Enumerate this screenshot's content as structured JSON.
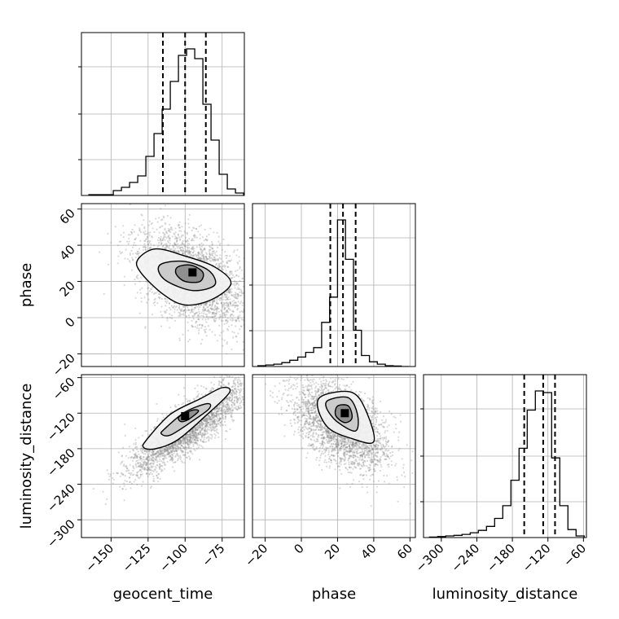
{
  "chart_data": {
    "type": "corner",
    "parameters": [
      "geocent_time",
      "phase",
      "luminosity_distance"
    ],
    "xlabels": [
      "geocent_time",
      "phase",
      "luminosity_distance"
    ],
    "ylabels": [
      "",
      "phase",
      "luminosity_distance"
    ],
    "ranges": {
      "geocent_time": [
        -170,
        -60
      ],
      "phase": [
        -27,
        63
      ],
      "luminosity_distance": [
        -330,
        -55
      ]
    },
    "ticks": {
      "geocent_time": [
        -150,
        -125,
        -100,
        -75
      ],
      "phase": [
        -20,
        0,
        20,
        40,
        60
      ],
      "luminosity_distance": [
        -300,
        -240,
        -180,
        -120,
        -60
      ]
    },
    "tick_labels": {
      "geocent_time": [
        "−150",
        "−125",
        "−100",
        "−75"
      ],
      "phase": [
        "−20",
        "0",
        "20",
        "40",
        "60"
      ],
      "luminosity_distance": [
        "−300",
        "−240",
        "−180",
        "−120",
        "−60"
      ]
    },
    "quantiles": {
      "geocent_time": [
        -115,
        -100,
        -86
      ],
      "phase": [
        16,
        23,
        30
      ],
      "luminosity_distance": [
        -160,
        -128,
        -108
      ]
    },
    "histograms": {
      "geocent_time": {
        "edges": [
          -165,
          -159.5,
          -154,
          -148.5,
          -143,
          -137.5,
          -132,
          -126.5,
          -121,
          -115.5,
          -110,
          -104.5,
          -99,
          -93.5,
          -88,
          -82.5,
          -77,
          -71.5,
          -66,
          -60.5
        ],
        "counts": [
          0.005,
          0.005,
          0.005,
          0.03,
          0.05,
          0.08,
          0.12,
          0.24,
          0.38,
          0.53,
          0.7,
          0.86,
          0.9,
          0.84,
          0.56,
          0.34,
          0.13,
          0.04,
          0.015
        ]
      },
      "phase": {
        "edges": [
          -24,
          -19.6,
          -15.2,
          -10.8,
          -6.4,
          -2,
          2.4,
          6.8,
          11.2,
          15.6,
          20,
          24.4,
          28.8,
          33.2,
          37.6,
          42,
          46.4,
          50.8,
          55.2,
          59.6
        ],
        "counts": [
          0.005,
          0.01,
          0.015,
          0.025,
          0.04,
          0.06,
          0.09,
          0.12,
          0.28,
          0.44,
          0.93,
          0.68,
          0.23,
          0.07,
          0.03,
          0.015,
          0.005,
          0.003,
          0
        ]
      },
      "luminosity_distance": {
        "edges": [
          -320,
          -306.25,
          -292.5,
          -278.75,
          -265,
          -251.25,
          -237.5,
          -223.75,
          -210,
          -196.25,
          -182.5,
          -168.75,
          -155,
          -141.25,
          -127.5,
          -113.75,
          -100,
          -86.25,
          -72.5,
          -58.75
        ],
        "counts": [
          0.003,
          0.006,
          0.01,
          0.014,
          0.02,
          0.03,
          0.045,
          0.07,
          0.12,
          0.2,
          0.36,
          0.56,
          0.8,
          0.92,
          0.91,
          0.5,
          0.2,
          0.05,
          0.01
        ]
      }
    },
    "pairs": [
      {
        "x": "geocent_time",
        "y": "phase",
        "mean": [
          -96,
          22
        ],
        "sd": [
          18,
          13
        ],
        "corr": -0.45,
        "n": 3000,
        "peak": [
          -95,
          25
        ],
        "contours": [
          [
            [
              -132,
              32
            ],
            [
              -120,
              38
            ],
            [
              -100,
              34
            ],
            [
              -80,
              28
            ],
            [
              -69,
              19
            ],
            [
              -82,
              10
            ],
            [
              -100,
              7
            ],
            [
              -115,
              13
            ],
            [
              -130,
              25
            ]
          ],
          [
            [
              -115,
              30
            ],
            [
              -100,
              31
            ],
            [
              -84,
              26
            ],
            [
              -80,
              18
            ],
            [
              -95,
              15
            ],
            [
              -112,
              20
            ],
            [
              -118,
              26
            ]
          ],
          [
            [
              -105,
              28
            ],
            [
              -96,
              29
            ],
            [
              -88,
              25
            ],
            [
              -90,
              20
            ],
            [
              -100,
              20
            ],
            [
              -106,
              24
            ]
          ]
        ]
      },
      {
        "x": "geocent_time",
        "y": "luminosity_distance",
        "mean": [
          -98,
          -145
        ],
        "sd": [
          19,
          38
        ],
        "corr": 0.85,
        "n": 3000,
        "peak": [
          -100,
          -125
        ],
        "contours": [
          [
            [
              -126,
              -165
            ],
            [
              -110,
              -122
            ],
            [
              -90,
              -96
            ],
            [
              -75,
              -77
            ],
            [
              -70,
              -85
            ],
            [
              -85,
              -122
            ],
            [
              -105,
              -165
            ],
            [
              -120,
              -180
            ],
            [
              -128,
              -178
            ]
          ],
          [
            [
              -114,
              -147
            ],
            [
              -100,
              -118
            ],
            [
              -85,
              -104
            ],
            [
              -84,
              -113
            ],
            [
              -96,
              -135
            ],
            [
              -110,
              -157
            ],
            [
              -116,
              -155
            ]
          ],
          [
            [
              -104,
              -126
            ],
            [
              -95,
              -115
            ],
            [
              -91,
              -117
            ],
            [
              -98,
              -131
            ],
            [
              -103,
              -134
            ]
          ]
        ]
      },
      {
        "x": "phase",
        "y": "luminosity_distance",
        "mean": [
          22,
          -140
        ],
        "sd": [
          13,
          38
        ],
        "corr": -0.5,
        "n": 3000,
        "peak": [
          24,
          -120
        ],
        "contours": [
          [
            [
              12,
              -90
            ],
            [
              28,
              -85
            ],
            [
              36,
              -118
            ],
            [
              40,
              -168
            ],
            [
              28,
              -163
            ],
            [
              15,
              -145
            ],
            [
              9,
              -110
            ]
          ],
          [
            [
              15,
              -98
            ],
            [
              26,
              -94
            ],
            [
              31,
              -122
            ],
            [
              30,
              -150
            ],
            [
              20,
              -135
            ],
            [
              14,
              -112
            ]
          ],
          [
            [
              20,
              -108
            ],
            [
              26,
              -108
            ],
            [
              28,
              -128
            ],
            [
              24,
              -136
            ],
            [
              19,
              -124
            ]
          ]
        ]
      }
    ],
    "grid": true,
    "legend": "none"
  }
}
